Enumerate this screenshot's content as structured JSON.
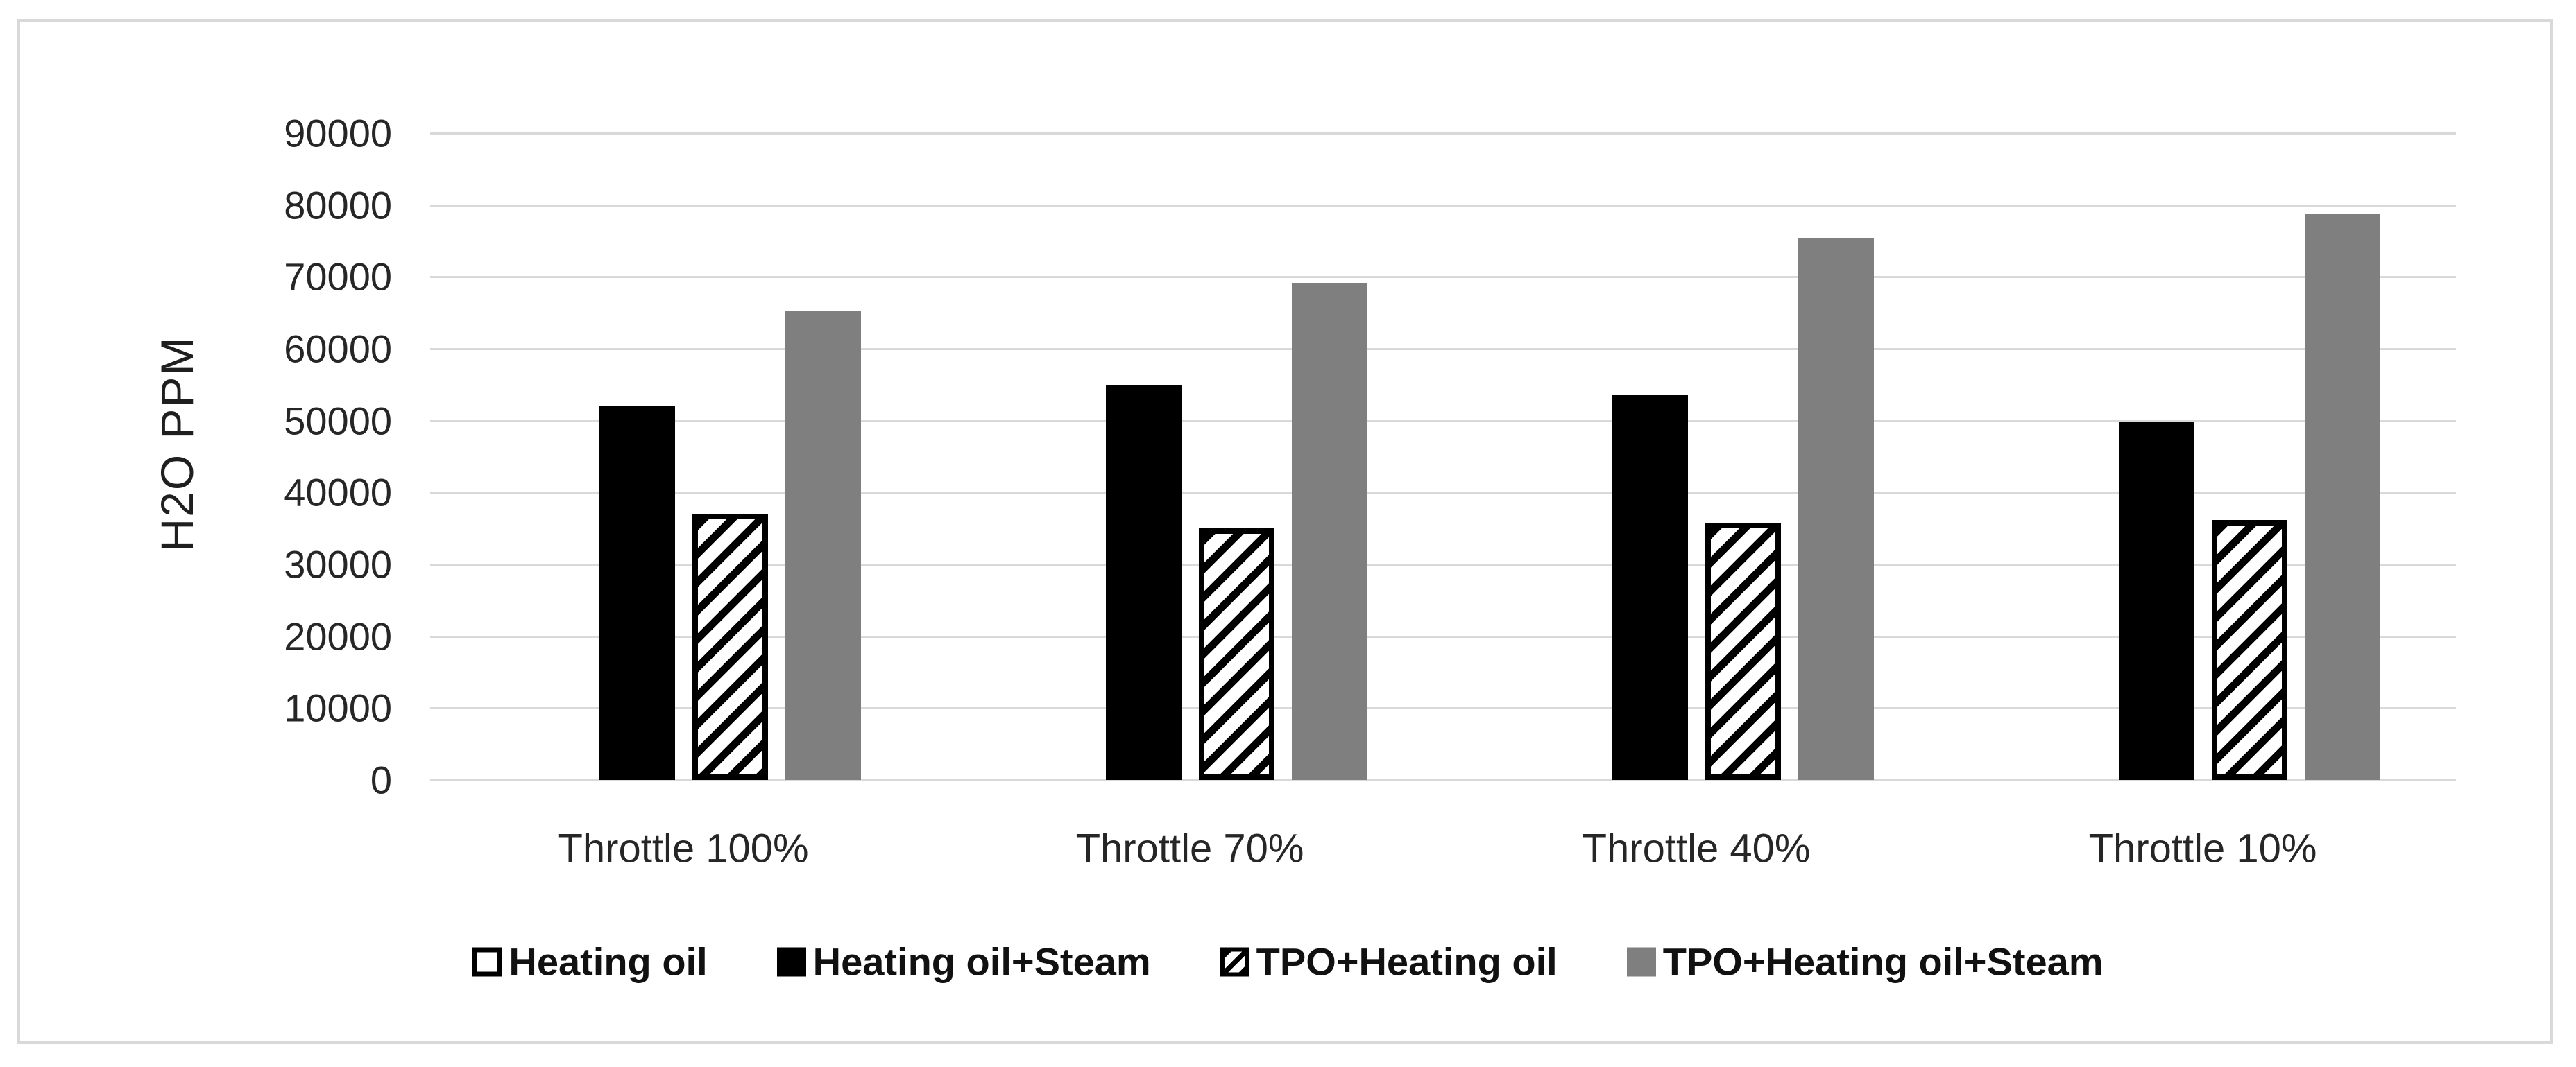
{
  "figure": {
    "background": "#ffffff",
    "border_color": "#d9d9d9"
  },
  "chart_data": {
    "type": "bar",
    "title": "",
    "xlabel": "",
    "ylabel": "H2O PPM",
    "ylim": [
      0,
      90000
    ],
    "ytick_step": 10000,
    "ytick_labels": [
      "90000",
      "80000",
      "70000",
      "60000",
      "50000",
      "40000",
      "30000",
      "20000",
      "10000",
      "0"
    ],
    "grid": true,
    "gridline_color": "#d9d9d9",
    "legend_position": "bottom",
    "categories": [
      "Throttle 100%",
      "Throttle 70%",
      "Throttle 40%",
      "Throttle 10%"
    ],
    "series": [
      {
        "name": "Heating oil",
        "style": "outline",
        "color": "#ffffff",
        "values": [
          0,
          0,
          0,
          0
        ]
      },
      {
        "name": "Heating oil+Steam",
        "style": "solid",
        "color": "#000000",
        "values": [
          52000,
          55000,
          53500,
          49800
        ]
      },
      {
        "name": "TPO+Heating oil",
        "style": "hatched",
        "color": "#000000",
        "values": [
          37000,
          35000,
          35800,
          36200
        ]
      },
      {
        "name": "TPO+Heating oil+Steam",
        "style": "solid",
        "color": "#7f7f7f",
        "values": [
          65200,
          69200,
          75300,
          78700
        ]
      }
    ]
  }
}
